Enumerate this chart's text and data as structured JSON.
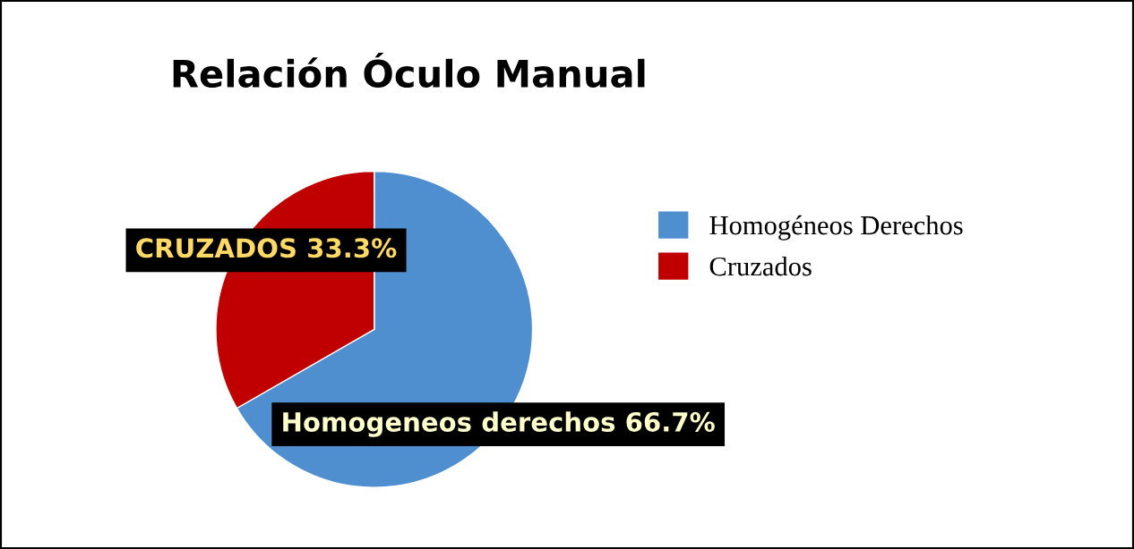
{
  "chart_data": {
    "type": "pie",
    "title": "Relación Óculo Manual",
    "categories": [
      "Homogéneos Derechos",
      "Cruzados"
    ],
    "values": [
      66.7,
      33.3
    ],
    "colors": [
      "#4f8fd0",
      "#c00000"
    ],
    "value_labels": [
      "Homogeneos derechos 66.7%",
      "CRUZADOS 33.3%"
    ],
    "legend": "right"
  }
}
